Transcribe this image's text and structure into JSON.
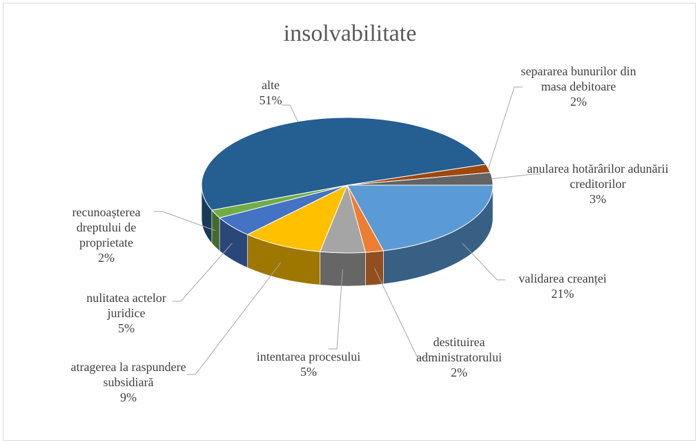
{
  "chart_data": {
    "type": "pie3d",
    "title": "insolvabilitate",
    "categories": [
      "validarea creanței",
      "destituirea administratorului",
      "intentarea procesului",
      "atragerea la raspundere subsidiară",
      "nulitatea actelor juridice",
      "recunoașterea dreptului de proprietate",
      "alte",
      "separarea bunurilor din masa debitoare",
      "anularea hotărârilor adunării creditorilor"
    ],
    "values": [
      21,
      2,
      5,
      9,
      5,
      2,
      51,
      2,
      3
    ],
    "value_labels": [
      "21%",
      "2%",
      "5%",
      "9%",
      "5%",
      "2%",
      "51%",
      "2%",
      "3%"
    ],
    "colors": [
      "#5b9bd5",
      "#ed7d31",
      "#a5a5a5",
      "#ffc000",
      "#4472c4",
      "#70ad47",
      "#255e91",
      "#9e480e",
      "#636363"
    ]
  }
}
